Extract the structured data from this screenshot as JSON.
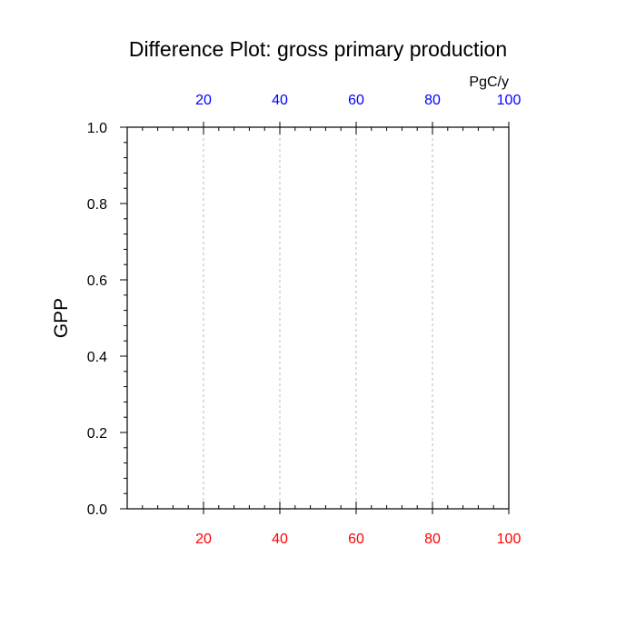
{
  "chart_data": {
    "type": "line",
    "title": "Difference Plot: gross primary production",
    "ylabel": "GPP",
    "top_axis_units": "PgC/y",
    "xlim": [
      0,
      100
    ],
    "ylim": [
      0,
      1.0
    ],
    "x_ticks": [
      20,
      40,
      60,
      80,
      100
    ],
    "x_minor_step": 4,
    "y_ticks": [
      0.0,
      0.2,
      0.4,
      0.6,
      0.8,
      1.0
    ],
    "y_tick_labels": [
      "0.0",
      "0.2",
      "0.4",
      "0.6",
      "0.8",
      "1.0"
    ],
    "y_minor_step": 0.04,
    "grid": "vertical-dashed",
    "series": [],
    "colors": {
      "bottom_axis_labels": "#ff0000",
      "top_axis_labels": "#0000ff",
      "grid": "#bbbbbb",
      "frame": "#000000"
    }
  }
}
